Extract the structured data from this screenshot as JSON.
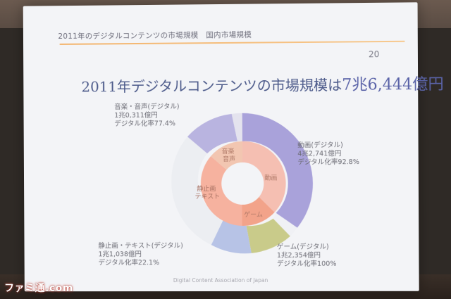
{
  "slide": {
    "header": "2011年のデジタルコンテンツの市場規模　国内市場規模",
    "page_number": "20",
    "title_prefix": "2011年デジタルコンテンツの市場規模は",
    "title_highlight": "7兆6,444億円",
    "footer": "Digital Content Association of Japan"
  },
  "labels": {
    "music": [
      "音楽・音声(デジタル)",
      "1兆0,311億円",
      "デジタル化率77.4%"
    ],
    "video": [
      "動画(デジタル)",
      "4兆2,741億円",
      "デジタル化率92.8%"
    ],
    "game": [
      "ゲーム(デジタル)",
      "1兆2,354億円",
      "デジタル化率100%"
    ],
    "still": [
      "静止画・テキスト(デジタル)",
      "1兆1,038億円",
      "デジタル化率22.1%"
    ]
  },
  "inner_labels": {
    "music": "音楽\n音声",
    "video": "動画",
    "game": "ゲーム",
    "still": "静止画\nテキスト"
  },
  "watermark": "ファミ通.com",
  "colors": {
    "music": "#b9b4e0",
    "video": "#a9a2da",
    "game": "#c9cb8a",
    "still": "#b7c3e6",
    "still_nondigital": "#eceef2",
    "inner_music": "#f2c6b1",
    "inner_video": "#f5bfb2",
    "inner_game": "#f2a38a",
    "inner_still": "#f6b29f"
  }
}
